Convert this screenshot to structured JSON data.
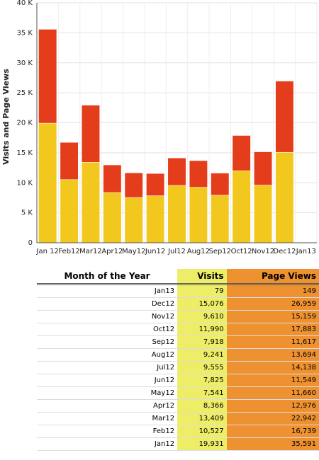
{
  "chart_data": {
    "type": "bar",
    "ylabel": "Visits and Page Views",
    "categories": [
      "Jan 12",
      "Feb12",
      "Mar12",
      "Apr12",
      "May12",
      "Jun12",
      "Jul12",
      "Aug12",
      "Sep12",
      "Oct12",
      "Nov12",
      "Dec12",
      "Jan13"
    ],
    "series": [
      {
        "name": "Page Views",
        "color": "#e43d1c",
        "values": [
          35591,
          16739,
          22942,
          12976,
          11660,
          11549,
          14138,
          13694,
          11617,
          17883,
          15159,
          26959,
          149
        ]
      },
      {
        "name": "Visits",
        "color": "#f2c81e",
        "values": [
          19931,
          10527,
          13409,
          8366,
          7541,
          7825,
          9555,
          9241,
          7918,
          11990,
          9610,
          15076,
          79
        ]
      }
    ],
    "ylim": [
      0,
      40000
    ],
    "yticks": [
      0,
      {
        "value": 5000,
        "label": "5 K"
      },
      {
        "value": 10000,
        "label": "10 K"
      },
      {
        "value": 15000,
        "label": "15 K"
      },
      {
        "value": 20000,
        "label": "20 K"
      },
      {
        "value": 25000,
        "label": "25 K"
      },
      {
        "value": 30000,
        "label": "30 K"
      },
      {
        "value": 35000,
        "label": "35 K"
      },
      {
        "value": 40000,
        "label": "40 K"
      }
    ],
    "grid": true
  },
  "table": {
    "headers": [
      "Month of the Year",
      "Visits",
      "Page Views"
    ],
    "rows": [
      [
        "Jan13",
        "79",
        "149"
      ],
      [
        "Dec12",
        "15,076",
        "26,959"
      ],
      [
        "Nov12",
        "9,610",
        "15,159"
      ],
      [
        "Oct12",
        "11,990",
        "17,883"
      ],
      [
        "Sep12",
        "7,918",
        "11,617"
      ],
      [
        "Aug12",
        "9,241",
        "13,694"
      ],
      [
        "Jul12",
        "9,555",
        "14,138"
      ],
      [
        "Jun12",
        "7,825",
        "11,549"
      ],
      [
        "May12",
        "7,541",
        "11,660"
      ],
      [
        "Apr12",
        "8,366",
        "12,976"
      ],
      [
        "Mar12",
        "13,409",
        "22,942"
      ],
      [
        "Feb12",
        "10,527",
        "16,739"
      ],
      [
        "Jan12",
        "19,931",
        "35,591"
      ]
    ]
  }
}
